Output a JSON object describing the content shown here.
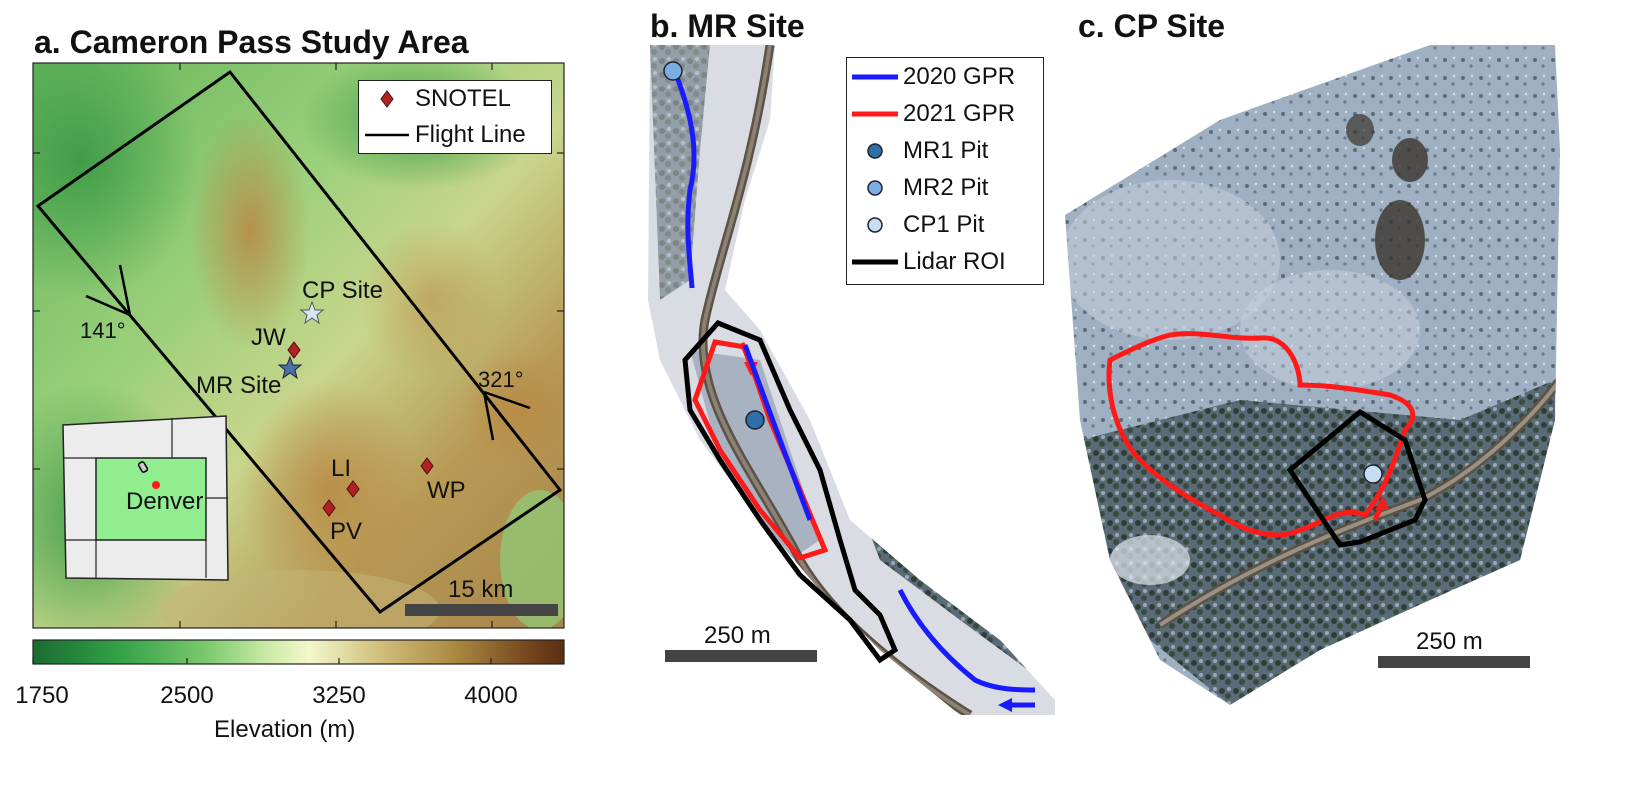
{
  "panels": {
    "a": {
      "title": "a. Cameron Pass Study Area",
      "legend": [
        {
          "label": "SNOTEL",
          "icon": "diamond-icon",
          "color": "#b22222"
        },
        {
          "label": "Flight Line",
          "icon": "line-icon",
          "color": "#000000"
        }
      ],
      "sites": [
        {
          "label": "CP Site",
          "icon": "star-icon",
          "color": "#d6e6f7"
        },
        {
          "label": "MR Site",
          "icon": "star-icon",
          "color": "#4a6fa5"
        }
      ],
      "snotel_stations": [
        "JW",
        "LI",
        "WP",
        "PV"
      ],
      "flight_headings": [
        "141°",
        "321°"
      ],
      "inset_city": "Denver",
      "scalebar": "15 km",
      "colorbar": {
        "label": "Elevation (m)",
        "ticks": [
          "1750",
          "2500",
          "3250",
          "4000"
        ],
        "colors": [
          "#1a6b30",
          "#2f9e45",
          "#77c86a",
          "#c9eaa6",
          "#f2f7cc",
          "#d2c07d",
          "#a9873f",
          "#7a4c20",
          "#5c2d12"
        ]
      }
    },
    "b": {
      "title": "b. MR Site",
      "legend": [
        {
          "label": "2020 GPR",
          "icon": "line-icon",
          "color": "#1a1aff"
        },
        {
          "label": "2021 GPR",
          "icon": "line-icon",
          "color": "#ff1a1a"
        },
        {
          "label": "MR1 Pit",
          "icon": "circle-icon",
          "color": "#2f6fa8"
        },
        {
          "label": "MR2 Pit",
          "icon": "circle-icon",
          "color": "#7aaee0"
        },
        {
          "label": "CP1 Pit",
          "icon": "circle-icon",
          "color": "#c7ddf2"
        },
        {
          "label": "Lidar ROI",
          "icon": "line-icon",
          "color": "#000000"
        }
      ],
      "scalebar": "250 m"
    },
    "c": {
      "title": "c. CP Site",
      "scalebar": "250 m"
    }
  }
}
